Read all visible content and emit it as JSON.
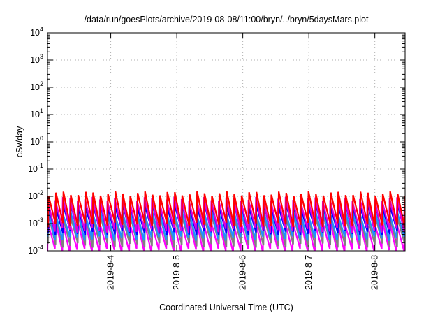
{
  "chart_data": {
    "type": "line",
    "title": "/data/run/goesPlots/archive/2019-08-08/11:00/bryn/../bryn/5daysMars.plot",
    "xlabel": "Coordinated Universal Time (UTC)",
    "ylabel": "cSv/day",
    "yscale": "log",
    "ylim": [
      0.0001,
      10000
    ],
    "xlim": [
      "2019-08-03 01:00",
      "2019-08-08 11:00"
    ],
    "yticks": [
      {
        "value": 0.0001,
        "base": "10",
        "exp": "-4"
      },
      {
        "value": 0.001,
        "base": "10",
        "exp": "-3"
      },
      {
        "value": 0.01,
        "base": "10",
        "exp": "-2"
      },
      {
        "value": 0.1,
        "base": "10",
        "exp": "-1"
      },
      {
        "value": 1,
        "base": "10",
        "exp": "0"
      },
      {
        "value": 10,
        "base": "10",
        "exp": "1"
      },
      {
        "value": 100,
        "base": "10",
        "exp": "2"
      },
      {
        "value": 1000,
        "base": "10",
        "exp": "3"
      },
      {
        "value": 10000,
        "base": "10",
        "exp": "4"
      }
    ],
    "xticks": [
      {
        "value": "2019-08-04 00:00",
        "label": "2019-8-4"
      },
      {
        "value": "2019-08-05 00:00",
        "label": "2019-8-5"
      },
      {
        "value": "2019-08-06 00:00",
        "label": "2019-8-6"
      },
      {
        "value": "2019-08-07 00:00",
        "label": "2019-8-7"
      },
      {
        "value": "2019-08-08 00:00",
        "label": "2019-8-8"
      }
    ],
    "grid": true,
    "legend": false,
    "pattern_note_hours": 2.7,
    "series": [
      {
        "color": "#ff0000",
        "peak_log10": -1.9,
        "trough_log10": -3.05
      },
      {
        "color": "#dd00dd",
        "peak_log10": -2.1,
        "trough_log10": -3.25
      },
      {
        "color": "#0000ff",
        "peak_log10": -2.35,
        "trough_log10": -3.35
      },
      {
        "color": "#1e90ff",
        "peak_log10": -2.55,
        "trough_log10": -3.55
      },
      {
        "color": "#808080",
        "peak_log10": -2.75,
        "trough_log10": -3.8
      },
      {
        "color": "#ff00ff",
        "peak_log10": -2.95,
        "trough_log10": -4.0
      }
    ]
  }
}
